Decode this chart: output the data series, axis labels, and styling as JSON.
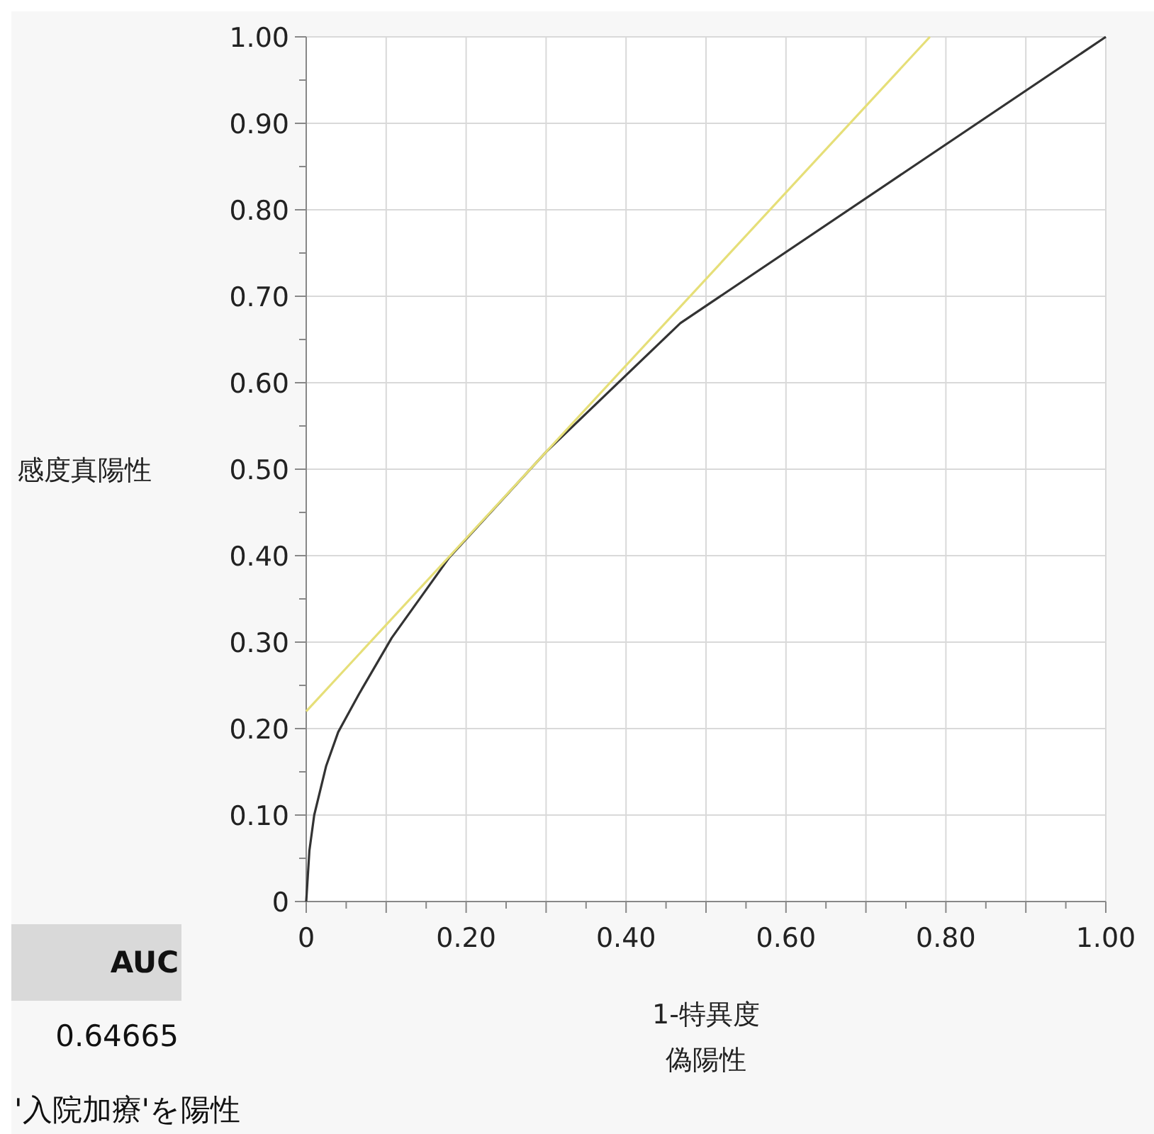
{
  "chart_data": {
    "type": "line",
    "xlabel": "1-特異度",
    "ylabel": "感度真陽性",
    "xlim": [
      0,
      1
    ],
    "ylim": [
      0,
      1
    ],
    "xticks": [
      0,
      {
        "value": 0.1,
        "label": null
      },
      {
        "value": 0.2,
        "label": "0.20"
      },
      {
        "value": 0.3,
        "label": null
      },
      {
        "value": 0.4,
        "label": "0.40"
      },
      {
        "value": 0.5,
        "label": null
      },
      {
        "value": 0.6,
        "label": "0.60"
      },
      {
        "value": 0.7,
        "label": null
      },
      {
        "value": 0.8,
        "label": "0.80"
      },
      {
        "value": 0.9,
        "label": null
      },
      {
        "value": 1,
        "label": "1.00"
      }
    ],
    "yticks": [
      0,
      {
        "value": 0.1,
        "label": "0.10"
      },
      {
        "value": 0.2,
        "label": "0.20"
      },
      {
        "value": 0.3,
        "label": "0.30"
      },
      {
        "value": 0.4,
        "label": "0.40"
      },
      {
        "value": 0.5,
        "label": "0.50"
      },
      {
        "value": 0.6,
        "label": "0.60"
      },
      {
        "value": 0.7,
        "label": "0.70"
      },
      {
        "value": 0.8,
        "label": "0.80"
      },
      {
        "value": 0.9,
        "label": "0.90"
      },
      {
        "value": 1,
        "label": "1.00"
      }
    ],
    "grid": true,
    "marker": "none",
    "line_style": "solid",
    "series": [
      {
        "color": "#333333",
        "x": [
          0,
          0.004,
          0.01,
          0.025,
          0.04,
          0.066,
          0.107,
          0.179,
          0.3,
          0.468,
          1
        ],
        "values": [
          0,
          0.059,
          0.1,
          0.157,
          0.196,
          0.24,
          0.305,
          0.398,
          0.52,
          0.669,
          1
        ]
      },
      {
        "color": "#e6df78",
        "x": [
          0,
          0.78
        ],
        "values": [
          0.22,
          1
        ]
      }
    ],
    "annotations": [
      "AUC",
      "0.64665",
      "'入院加療'を陽性",
      "偽陽性"
    ]
  }
}
